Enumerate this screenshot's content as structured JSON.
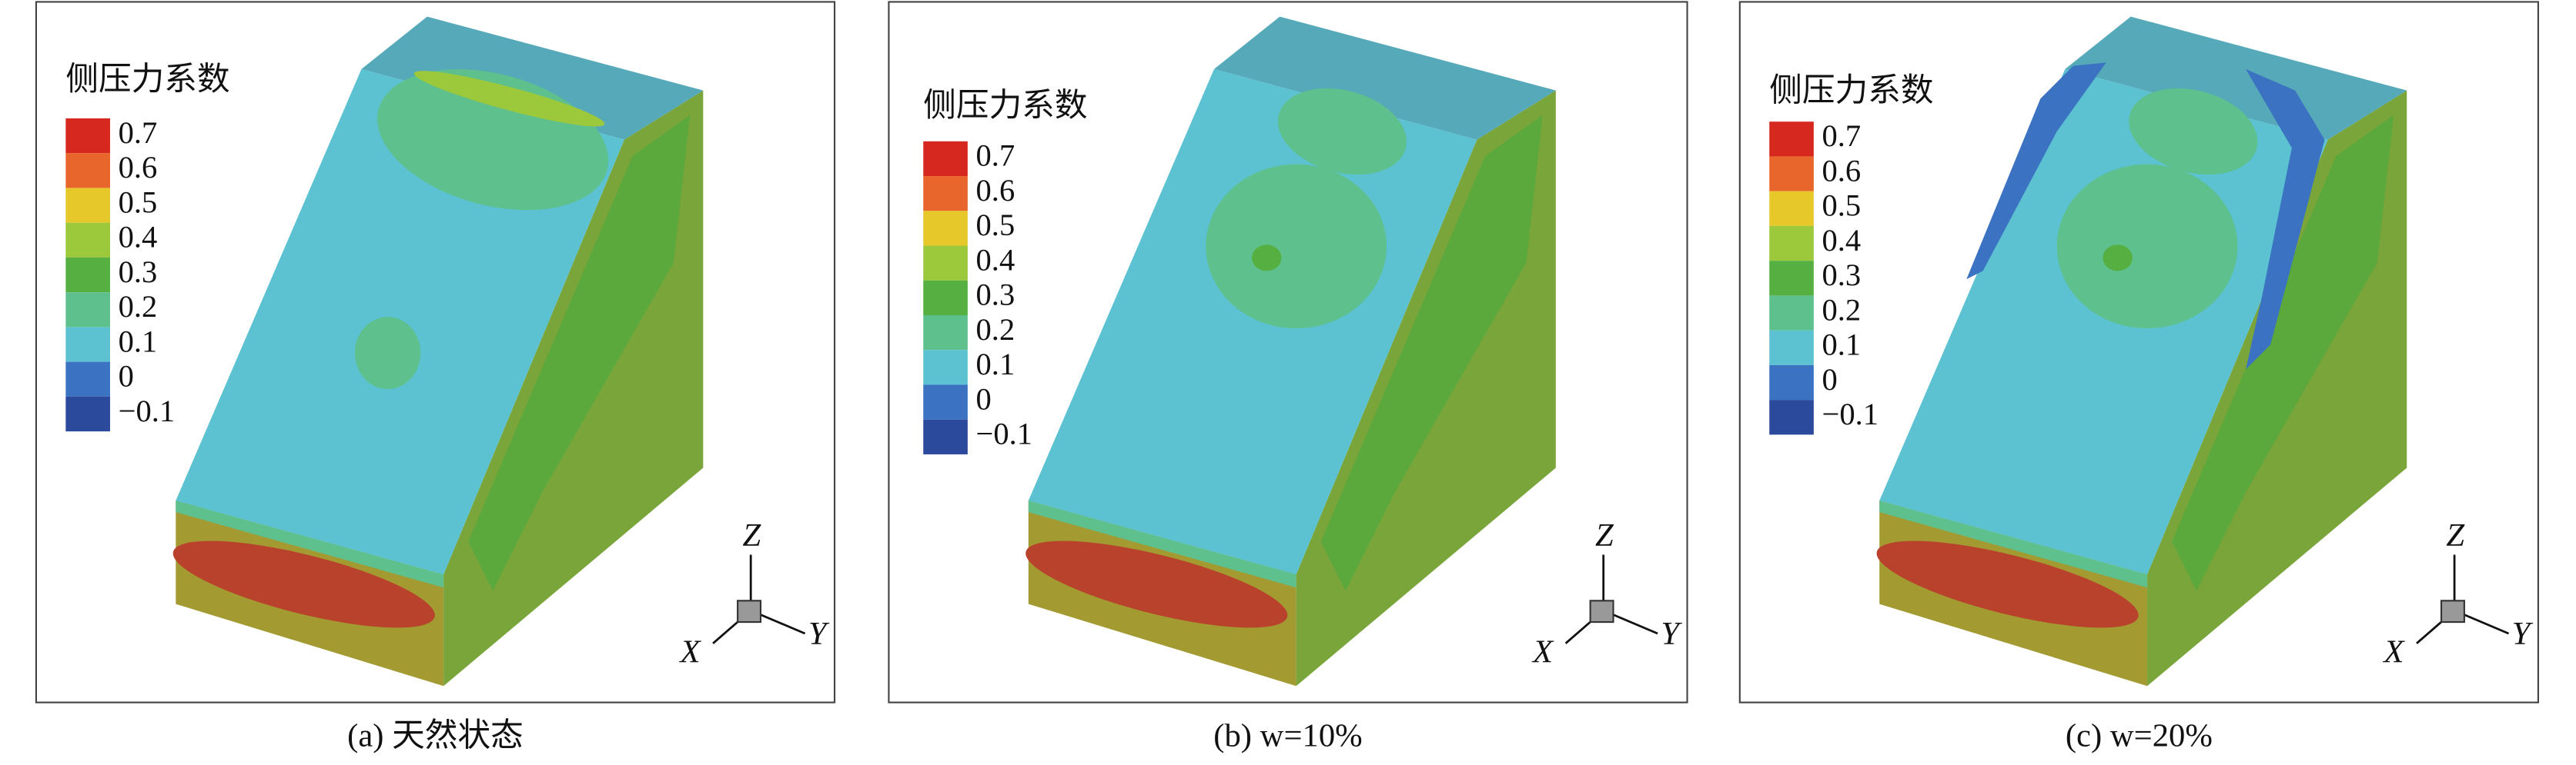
{
  "legend": {
    "title": "侧压力系数",
    "levels": [
      {
        "value": 0.7,
        "color": "#d7281f"
      },
      {
        "value": 0.6,
        "color": "#e8652b"
      },
      {
        "value": 0.5,
        "color": "#e6c82a"
      },
      {
        "value": 0.4,
        "color": "#9cc83c"
      },
      {
        "value": 0.3,
        "color": "#55b041"
      },
      {
        "value": 0.2,
        "color": "#5ec08c"
      },
      {
        "value": 0.1,
        "color": "#5cc2d2"
      },
      {
        "value": 0,
        "color": "#3b72c2"
      },
      {
        "value": -0.1,
        "label": "−0.1",
        "color": "#2b4a9c"
      }
    ]
  },
  "axes": {
    "x": "X",
    "y": "Y",
    "z": "Z"
  },
  "panels": [
    {
      "caption": "(a) 天然状态"
    },
    {
      "caption": "(b) w=10%"
    },
    {
      "caption": "(c) w=20%"
    }
  ]
}
